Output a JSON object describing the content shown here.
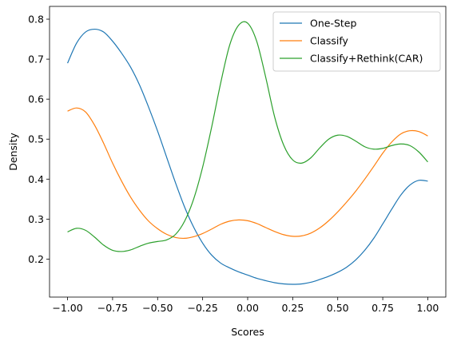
{
  "chart_data": {
    "type": "line",
    "title": "",
    "xlabel": "Scores",
    "ylabel": "Density",
    "xlim": [
      -1.1,
      1.1
    ],
    "ylim": [
      0.105,
      0.832
    ],
    "xticks": [
      -1.0,
      -0.75,
      -0.5,
      -0.25,
      0.0,
      0.25,
      0.5,
      0.75,
      1.0
    ],
    "xtick_labels": [
      "−1.00",
      "−0.75",
      "−0.50",
      "−0.25",
      "0.00",
      "0.25",
      "0.50",
      "0.75",
      "1.00"
    ],
    "yticks": [
      0.2,
      0.3,
      0.4,
      0.5,
      0.6,
      0.7,
      0.8
    ],
    "ytick_labels": [
      "0.2",
      "0.3",
      "0.4",
      "0.5",
      "0.6",
      "0.7",
      "0.8"
    ],
    "grid": false,
    "legend_position": "top-right",
    "series": [
      {
        "name": "One-Step",
        "color": "#1f77b4",
        "x": [
          -1.0,
          -0.95,
          -0.9,
          -0.85,
          -0.8,
          -0.75,
          -0.7,
          -0.65,
          -0.6,
          -0.55,
          -0.5,
          -0.45,
          -0.4,
          -0.35,
          -0.3,
          -0.25,
          -0.2,
          -0.15,
          -0.1,
          -0.05,
          0.0,
          0.05,
          0.1,
          0.15,
          0.2,
          0.25,
          0.3,
          0.35,
          0.4,
          0.45,
          0.5,
          0.55,
          0.6,
          0.65,
          0.7,
          0.75,
          0.8,
          0.85,
          0.9,
          0.95,
          1.0
        ],
        "y": [
          0.69,
          0.74,
          0.768,
          0.775,
          0.768,
          0.745,
          0.715,
          0.68,
          0.635,
          0.58,
          0.52,
          0.455,
          0.39,
          0.33,
          0.28,
          0.24,
          0.21,
          0.19,
          0.178,
          0.168,
          0.16,
          0.152,
          0.146,
          0.141,
          0.138,
          0.137,
          0.138,
          0.142,
          0.149,
          0.157,
          0.167,
          0.18,
          0.198,
          0.222,
          0.252,
          0.288,
          0.325,
          0.36,
          0.385,
          0.397,
          0.395
        ]
      },
      {
        "name": "Classify",
        "color": "#ff7f0e",
        "x": [
          -1.0,
          -0.95,
          -0.9,
          -0.85,
          -0.8,
          -0.75,
          -0.7,
          -0.65,
          -0.6,
          -0.55,
          -0.5,
          -0.45,
          -0.4,
          -0.35,
          -0.3,
          -0.25,
          -0.2,
          -0.15,
          -0.1,
          -0.05,
          0.0,
          0.05,
          0.1,
          0.15,
          0.2,
          0.25,
          0.3,
          0.35,
          0.4,
          0.45,
          0.5,
          0.55,
          0.6,
          0.65,
          0.7,
          0.75,
          0.8,
          0.85,
          0.9,
          0.95,
          1.0
        ],
        "y": [
          0.57,
          0.578,
          0.568,
          0.535,
          0.49,
          0.44,
          0.395,
          0.355,
          0.322,
          0.295,
          0.276,
          0.262,
          0.254,
          0.252,
          0.256,
          0.264,
          0.275,
          0.287,
          0.295,
          0.298,
          0.296,
          0.289,
          0.279,
          0.269,
          0.261,
          0.257,
          0.258,
          0.265,
          0.278,
          0.296,
          0.318,
          0.343,
          0.37,
          0.4,
          0.432,
          0.465,
          0.493,
          0.513,
          0.521,
          0.519,
          0.508
        ]
      },
      {
        "name": "Classify+Rethink(CAR)",
        "color": "#2ca02c",
        "x": [
          -1.0,
          -0.95,
          -0.9,
          -0.85,
          -0.8,
          -0.75,
          -0.7,
          -0.65,
          -0.6,
          -0.55,
          -0.5,
          -0.45,
          -0.4,
          -0.35,
          -0.3,
          -0.25,
          -0.2,
          -0.15,
          -0.1,
          -0.05,
          0.0,
          0.05,
          0.1,
          0.15,
          0.2,
          0.25,
          0.3,
          0.35,
          0.4,
          0.45,
          0.5,
          0.55,
          0.6,
          0.65,
          0.7,
          0.75,
          0.8,
          0.85,
          0.9,
          0.95,
          1.0
        ],
        "y": [
          0.268,
          0.277,
          0.272,
          0.255,
          0.235,
          0.222,
          0.219,
          0.223,
          0.232,
          0.24,
          0.244,
          0.248,
          0.262,
          0.295,
          0.35,
          0.43,
          0.53,
          0.64,
          0.735,
          0.785,
          0.79,
          0.745,
          0.655,
          0.555,
          0.485,
          0.448,
          0.44,
          0.453,
          0.478,
          0.5,
          0.51,
          0.507,
          0.495,
          0.481,
          0.475,
          0.477,
          0.484,
          0.488,
          0.484,
          0.468,
          0.443
        ]
      }
    ]
  }
}
